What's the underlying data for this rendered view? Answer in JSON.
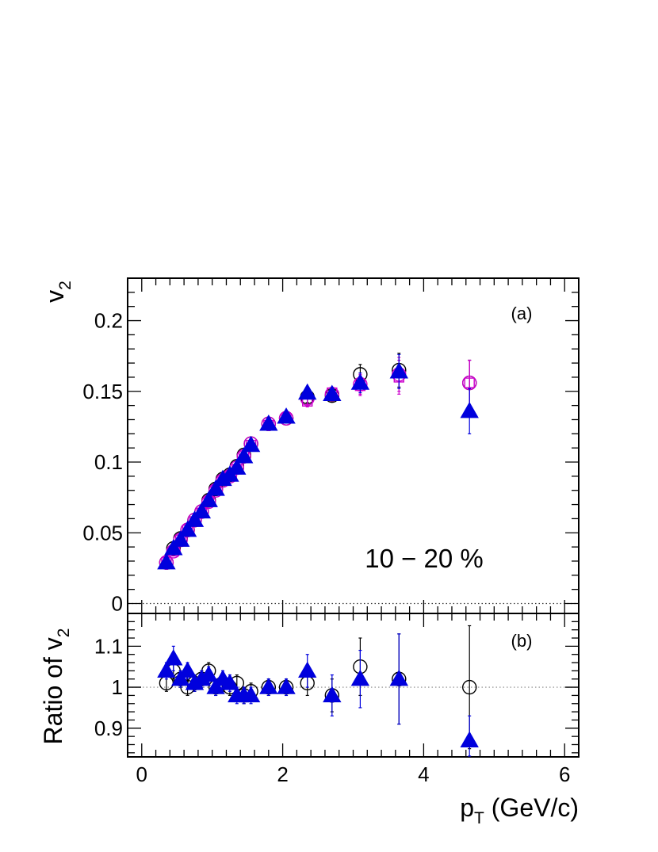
{
  "chart_data": [
    {
      "panel": "(a)",
      "type": "scatter",
      "ylabel": "v",
      "ylabel_sub": "2",
      "annotation": "10 − 20 %",
      "xlim": [
        -0.2,
        6.2
      ],
      "ylim": [
        -0.007,
        0.23
      ],
      "x_tick_values": [
        0,
        2,
        4,
        6
      ],
      "y_tick_values": [
        0,
        0.05,
        0.1,
        0.15,
        0.2
      ],
      "y_tick_labels": [
        "0",
        "0.05",
        "0.1",
        "0.15",
        "0.2"
      ],
      "reference_line": 0,
      "series": [
        {
          "marker": "open-circle",
          "color": "#000000",
          "x": [
            0.35,
            0.45,
            0.55,
            0.65,
            0.75,
            0.85,
            0.95,
            1.05,
            1.15,
            1.25,
            1.35,
            1.45,
            1.55,
            1.8,
            2.05,
            2.35,
            2.7,
            3.1,
            3.65,
            4.65
          ],
          "y": [
            0.029,
            0.039,
            0.046,
            0.052,
            0.059,
            0.065,
            0.073,
            0.081,
            0.088,
            0.091,
            0.097,
            0.105,
            0.113,
            0.127,
            0.131,
            0.146,
            0.147,
            0.162,
            0.165,
            0.156
          ],
          "err": [
            0.002,
            0.002,
            0.002,
            0.002,
            0.002,
            0.002,
            0.002,
            0.002,
            0.002,
            0.002,
            0.002,
            0.002,
            0.002,
            0.003,
            0.003,
            0.004,
            0.004,
            0.007,
            0.012,
            0.016
          ]
        },
        {
          "marker": "open-square",
          "color": "#cc00cc",
          "x": [
            0.35,
            0.45,
            0.55,
            0.65,
            0.75,
            0.85,
            0.95,
            1.05,
            1.15,
            1.25,
            1.35,
            1.45,
            1.55,
            1.8,
            2.05,
            2.35,
            2.7,
            3.1,
            3.65,
            4.65
          ],
          "y": [
            0.029,
            0.037,
            0.045,
            0.052,
            0.058,
            0.064,
            0.072,
            0.08,
            0.087,
            0.09,
            0.095,
            0.104,
            0.112,
            0.126,
            0.131,
            0.143,
            0.149,
            0.154,
            0.16,
            0.156
          ],
          "err": [
            0.002,
            0.002,
            0.002,
            0.002,
            0.002,
            0.002,
            0.002,
            0.002,
            0.002,
            0.002,
            0.002,
            0.002,
            0.002,
            0.003,
            0.003,
            0.004,
            0.004,
            0.007,
            0.012,
            0.016
          ]
        },
        {
          "marker": "open-circle",
          "color": "#cc00cc",
          "x": [
            0.35,
            0.45,
            0.55,
            0.65,
            0.75,
            0.85,
            0.95,
            1.05,
            1.15,
            1.25,
            1.35,
            1.45,
            1.55,
            1.8,
            2.05,
            2.35,
            2.7,
            3.1,
            3.65,
            4.65
          ],
          "y": [
            0.029,
            0.037,
            0.045,
            0.052,
            0.059,
            0.065,
            0.072,
            0.08,
            0.087,
            0.09,
            0.096,
            0.104,
            0.113,
            0.127,
            0.131,
            0.145,
            0.148,
            0.155,
            0.162,
            0.156
          ],
          "err": [
            0.002,
            0.002,
            0.002,
            0.002,
            0.002,
            0.002,
            0.002,
            0.002,
            0.002,
            0.002,
            0.002,
            0.002,
            0.002,
            0.003,
            0.003,
            0.004,
            0.004,
            0.007,
            0.012,
            0.016
          ]
        },
        {
          "marker": "filled-triangle",
          "color": "#0000dd",
          "x": [
            0.35,
            0.45,
            0.55,
            0.65,
            0.75,
            0.85,
            0.95,
            1.05,
            1.15,
            1.25,
            1.35,
            1.45,
            1.55,
            1.8,
            2.05,
            2.35,
            2.7,
            3.1,
            3.65,
            4.65
          ],
          "y": [
            0.029,
            0.039,
            0.045,
            0.052,
            0.059,
            0.065,
            0.073,
            0.081,
            0.088,
            0.091,
            0.096,
            0.104,
            0.112,
            0.127,
            0.132,
            0.149,
            0.148,
            0.156,
            0.164,
            0.136
          ],
          "err": [
            0.002,
            0.002,
            0.002,
            0.002,
            0.002,
            0.002,
            0.002,
            0.002,
            0.002,
            0.002,
            0.002,
            0.002,
            0.002,
            0.003,
            0.003,
            0.004,
            0.004,
            0.007,
            0.012,
            0.016
          ]
        }
      ]
    },
    {
      "panel": "(b)",
      "type": "scatter",
      "ylabel": "Ratio of v",
      "ylabel_sub": "2",
      "xlabel": "p",
      "xlabel_sub": "T",
      "xlabel_unit": " (GeV/c)",
      "xlim": [
        -0.2,
        6.2
      ],
      "ylim": [
        0.83,
        1.18
      ],
      "x_tick_values": [
        0,
        2,
        4,
        6
      ],
      "x_tick_labels": [
        "0",
        "2",
        "4",
        "6"
      ],
      "y_tick_values": [
        0.9,
        1.0,
        1.1
      ],
      "y_tick_labels": [
        "0.9",
        "1",
        "1.1"
      ],
      "reference_line": 1,
      "series": [
        {
          "marker": "open-circle",
          "color": "#000000",
          "x": [
            0.35,
            0.45,
            0.55,
            0.65,
            0.75,
            0.85,
            0.95,
            1.05,
            1.15,
            1.25,
            1.35,
            1.45,
            1.55,
            1.8,
            2.05,
            2.35,
            2.7,
            3.1,
            3.65,
            4.65
          ],
          "y": [
            1.01,
            1.04,
            1.02,
            1.0,
            1.01,
            1.02,
            1.04,
            1.0,
            1.01,
            1.0,
            1.01,
            0.98,
            0.99,
            1.0,
            1.0,
            1.01,
            0.98,
            1.05,
            1.02,
            1.0
          ],
          "err": [
            0.02,
            0.02,
            0.02,
            0.02,
            0.02,
            0.02,
            0.02,
            0.02,
            0.02,
            0.02,
            0.02,
            0.02,
            0.02,
            0.02,
            0.02,
            0.03,
            0.04,
            0.07,
            0.11,
            0.15
          ]
        },
        {
          "marker": "filled-triangle",
          "color": "#0000dd",
          "x": [
            0.35,
            0.45,
            0.55,
            0.65,
            0.75,
            0.85,
            0.95,
            1.05,
            1.15,
            1.25,
            1.35,
            1.45,
            1.55,
            1.8,
            2.05,
            2.35,
            2.7,
            3.1,
            3.65,
            4.65
          ],
          "y": [
            1.04,
            1.07,
            1.02,
            1.04,
            1.01,
            1.02,
            1.03,
            1.0,
            1.02,
            1.01,
            0.98,
            0.98,
            0.98,
            1.0,
            1.0,
            1.04,
            0.98,
            1.02,
            1.02,
            0.87
          ],
          "err": [
            0.02,
            0.03,
            0.02,
            0.02,
            0.02,
            0.02,
            0.02,
            0.02,
            0.02,
            0.02,
            0.02,
            0.02,
            0.02,
            0.02,
            0.02,
            0.04,
            0.05,
            0.07,
            0.11,
            0.06
          ]
        }
      ]
    }
  ]
}
